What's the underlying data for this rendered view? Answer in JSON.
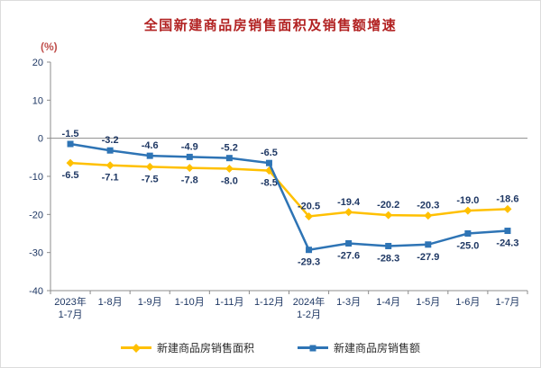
{
  "colors": {
    "title": "#B22222",
    "unit": "#C0504D",
    "label": "#1F3864",
    "axis": "#8C8C8C"
  },
  "chart_data": {
    "type": "line",
    "title": "全国新建商品房销售面积及销售额增速",
    "unit_label": "(%)",
    "categories": [
      "2023年\n1-7月",
      "1-8月",
      "1-9月",
      "1-10月",
      "1-11月",
      "1-12月",
      "2024年\n1-2月",
      "1-3月",
      "1-4月",
      "1-5月",
      "1-6月",
      "1-7月"
    ],
    "series": [
      {
        "name": "新建商品房销售面积",
        "color": "#FFC000",
        "marker": "diamond",
        "values": [
          -6.5,
          -7.1,
          -7.5,
          -7.8,
          -8.0,
          -8.5,
          -20.5,
          -19.4,
          -20.2,
          -20.3,
          -19.0,
          -18.6
        ]
      },
      {
        "name": "新建商品房销售额",
        "color": "#2E74B5",
        "marker": "square",
        "values": [
          -1.5,
          -3.2,
          -4.6,
          -4.9,
          -5.2,
          -6.5,
          -29.3,
          -27.6,
          -28.3,
          -27.9,
          -25.0,
          -24.3
        ]
      }
    ],
    "ylim": [
      -40,
      20
    ],
    "yticks": [
      20,
      10,
      0,
      -10,
      -20,
      -30,
      -40
    ],
    "grid": false,
    "legend_position": "bottom"
  }
}
